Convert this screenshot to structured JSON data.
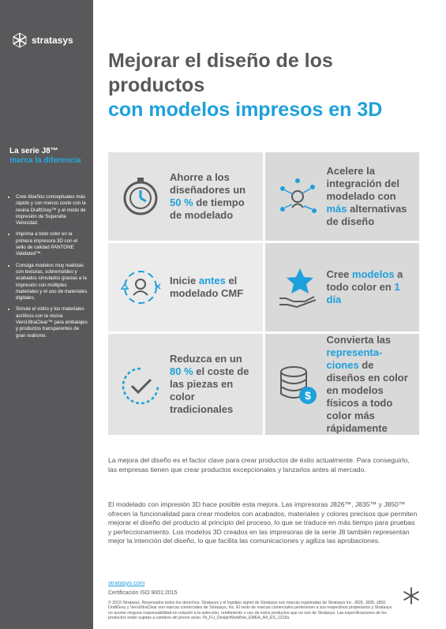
{
  "logo": "stratasys",
  "title": {
    "line1": "Mejorar el diseño de los productos",
    "line2": "con modelos impresos en 3D"
  },
  "sidebar": {
    "heading": "La serie J8™",
    "subheading": "marca la diferencia",
    "bullets": [
      "Cree diseños conceptuales más rápido y con menos coste con la resina DraftGrey™ y el modo de impresión de Superalta Velocidad.",
      "Imprima a todo color en la primera impresora 3D con el sello de calidad PANTONE Validated™.",
      "Consiga modelos muy realistas con texturas, sobremoldeo y acabados simulados gracias a la impresión con múltiples materiales y el uso de materiales digitales.",
      "Simule el vidrio y los materiales acrílicos con la resina VeroUltraClear™ para embalajes y productos transparentes de gran realismo."
    ]
  },
  "benefits": [
    {
      "parts": [
        "Ahorre a los diseñadores un ",
        "50 %",
        " de tiempo de modelado"
      ]
    },
    {
      "parts": [
        "Acelere la integración del modelado con ",
        "más",
        " alternativas de diseño"
      ]
    },
    {
      "parts": [
        "Inicie ",
        "antes",
        " el modelado CMF"
      ]
    },
    {
      "parts": [
        "Cree ",
        "modelos",
        " a todo color en ",
        "1 día"
      ]
    },
    {
      "parts": [
        "Reduzca en un ",
        "80 %",
        " el coste de las piezas en color tradicionales"
      ]
    },
    {
      "parts": [
        "Convierta las ",
        "representa-ciones",
        " de diseños en color en modelos físicos a todo color más rápidamente"
      ]
    }
  ],
  "paragraphs": [
    "La mejora del diseño es el factor clave para crear productos de éxito actualmente. Para conseguirlo, las empresas tienen que crear productos excepcionales y lanzarlos antes al mercado.",
    "El modelado con impresión 3D hace posible esta mejora. Las impresoras J826™, J835™ y J850™ ofrecen la funcionalidad para crear modelos con acabados, materiales y colores precisos que permiten mejorar el diseño del producto al principio del proceso, lo que se traduce en más tiempo para pruebas y perfeccionamiento. Los modelos 3D creados en las impresoras de la serie J8 también representan mejor la intención del diseño, lo que facilita las comunicaciones y agiliza las aprobaciones."
  ],
  "footer": {
    "link": "stratasys.com",
    "certification": "Certificación ISO 9001:2015",
    "legal": "© 2019 Stratasys. Reservados todos los derechos. Stratasys y el logotipo signet de Stratasys son marcas registradas de Stratasys Inc. J826, J835, J850, DraftGrey y VeroUltraClear son marcas comerciales de Stratasys, Inc. El resto de marcas comerciales pertenecen a sus respectivos propietarios y Stratasys no asume ninguna responsabilidad en relación a la selección, rendimiento o uso de estos productos que no son de Stratasys. Las especificaciones de los productos están sujetas a cambios sin previo aviso. IN_FU_DesignWorkflow_EMEA_A4_ES_1219a"
  }
}
